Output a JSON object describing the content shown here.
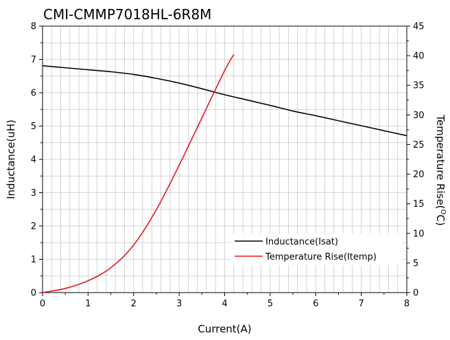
{
  "chart_data": {
    "type": "line",
    "title": "CMI-CMMP7018HL-6R8M",
    "xlabel": "Current(A)",
    "ylabel": "Inductance(uH)",
    "y2label_prefix": "Temperature Rise(",
    "y2label_sup": "O",
    "y2label_suffix": "C)",
    "xlim": [
      0,
      8
    ],
    "ylim": [
      0,
      8
    ],
    "y2lim": [
      0,
      45
    ],
    "x_ticks": [
      "0",
      "1",
      "2",
      "3",
      "4",
      "5",
      "6",
      "7",
      "8"
    ],
    "y_ticks": [
      "0",
      "1",
      "2",
      "3",
      "4",
      "5",
      "6",
      "7",
      "8"
    ],
    "y2_ticks": [
      "0",
      "5",
      "10",
      "15",
      "20",
      "25",
      "30",
      "35",
      "40",
      "45"
    ],
    "grid": true,
    "legend_position": "bottom-right",
    "series": [
      {
        "name": "Inductance(Isat)",
        "axis": "left",
        "color": "#000000",
        "x": [
          0,
          0.5,
          1,
          1.5,
          2,
          2.5,
          3,
          3.5,
          4,
          4.5,
          5,
          5.5,
          6,
          6.5,
          7,
          7.5,
          8
        ],
        "y": [
          6.81,
          6.75,
          6.69,
          6.63,
          6.55,
          6.43,
          6.29,
          6.12,
          5.94,
          5.78,
          5.62,
          5.45,
          5.31,
          5.16,
          5.01,
          4.86,
          4.71
        ]
      },
      {
        "name": "Temperature Rise(Itemp)",
        "axis": "right",
        "color": "#e8141c",
        "x": [
          0,
          0.5,
          1,
          1.5,
          2,
          2.5,
          3,
          3.5,
          4,
          4.2
        ],
        "y": [
          0,
          0.7,
          2.0,
          4.2,
          8.0,
          14.0,
          21.5,
          29.5,
          37.5,
          40.2
        ]
      }
    ]
  }
}
